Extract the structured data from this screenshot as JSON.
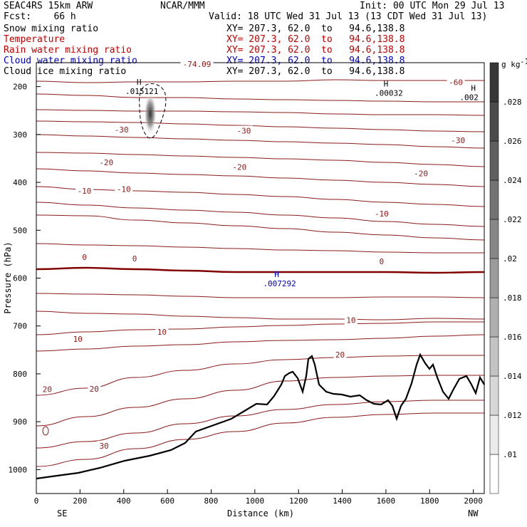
{
  "header": {
    "model": "SEAC4RS 15km ARW",
    "center": "NCAR/MMM",
    "init": "Init: 00 UTC Mon 29 Jul 13",
    "fcst": "Fcst:    66 h",
    "valid": "Valid: 18 UTC Wed 31 Jul 13 (13 CDT Wed 31 Jul 13)"
  },
  "fields": [
    {
      "label": "Snow mixing ratio",
      "xy": "XY= 207.3, 62.0  to   94.6,138.8",
      "color": "#000000"
    },
    {
      "label": "Temperature",
      "xy": "XY= 207.3, 62.0  to   94.6,138.8",
      "color": "#c00000"
    },
    {
      "label": "Rain water mixing ratio",
      "xy": "XY= 207.3, 62.0  to   94.6,138.8",
      "color": "#c00000"
    },
    {
      "label": "Cloud water mixing ratio",
      "xy": "XY= 207.3, 62.0  to   94.6,138.8",
      "color": "#0000c0"
    },
    {
      "label": "Cloud ice mixing ratio",
      "xy": "XY= 207.3, 62.0  to   94.6,138.8",
      "color": "#000000"
    }
  ],
  "chart_data": {
    "type": "contour-cross-section",
    "xlabel": "Distance (km)",
    "ylabel": "Pressure (hPa)",
    "xlim": [
      0,
      2050
    ],
    "ylim": [
      1050,
      150
    ],
    "x_ticks": [
      0,
      200,
      400,
      600,
      800,
      1000,
      1200,
      1400,
      1600,
      1800,
      2000
    ],
    "y_ticks": [
      200,
      300,
      400,
      500,
      600,
      700,
      800,
      900,
      1000
    ],
    "endpoints": {
      "left": "SE",
      "right": "NW"
    },
    "colorbar": {
      "unit": "g kg",
      "unit_exponent": "-1",
      "levels": [
        ".01",
        ".012",
        ".014",
        ".016",
        ".018",
        ".02",
        ".022",
        ".024",
        ".026",
        ".028"
      ]
    },
    "temperature_labels": [
      {
        "text": "-74.09",
        "x": 735,
        "p": 153
      },
      {
        "text": "-60",
        "x": 1920,
        "p": 191
      },
      {
        "text": "-30",
        "x": 390,
        "p": 290
      },
      {
        "text": "-30",
        "x": 950,
        "p": 292
      },
      {
        "text": "-30",
        "x": 1930,
        "p": 312
      },
      {
        "text": "-20",
        "x": 320,
        "p": 358
      },
      {
        "text": "-20",
        "x": 930,
        "p": 368
      },
      {
        "text": "-20",
        "x": 1760,
        "p": 381
      },
      {
        "text": "-10",
        "x": 220,
        "p": 418
      },
      {
        "text": "-10",
        "x": 400,
        "p": 414
      },
      {
        "text": "-10",
        "x": 1580,
        "p": 465
      },
      {
        "text": "0",
        "x": 220,
        "p": 556
      },
      {
        "text": "0",
        "x": 450,
        "p": 559
      },
      {
        "text": "0",
        "x": 1580,
        "p": 565
      },
      {
        "text": "10",
        "x": 190,
        "p": 727
      },
      {
        "text": "10",
        "x": 575,
        "p": 712
      },
      {
        "text": "10",
        "x": 1440,
        "p": 688
      },
      {
        "text": "20",
        "x": 50,
        "p": 832
      },
      {
        "text": "20",
        "x": 265,
        "p": 831
      },
      {
        "text": "20",
        "x": 1390,
        "p": 760
      },
      {
        "text": "30",
        "x": 310,
        "p": 950
      }
    ],
    "extrema": [
      {
        "marker": "H",
        "value": ".015121",
        "x": 470,
        "p": 199,
        "color": "#000000"
      },
      {
        "marker": "H",
        "value": ".00032",
        "x": 1600,
        "p": 203,
        "color": "#000000"
      },
      {
        "marker": "H",
        "value": ".002",
        "x": 2000,
        "p": 212,
        "color": "#000000"
      },
      {
        "marker": "H",
        "value": ".007292",
        "x": 1100,
        "p": 601,
        "color": "#0000c0"
      }
    ]
  }
}
